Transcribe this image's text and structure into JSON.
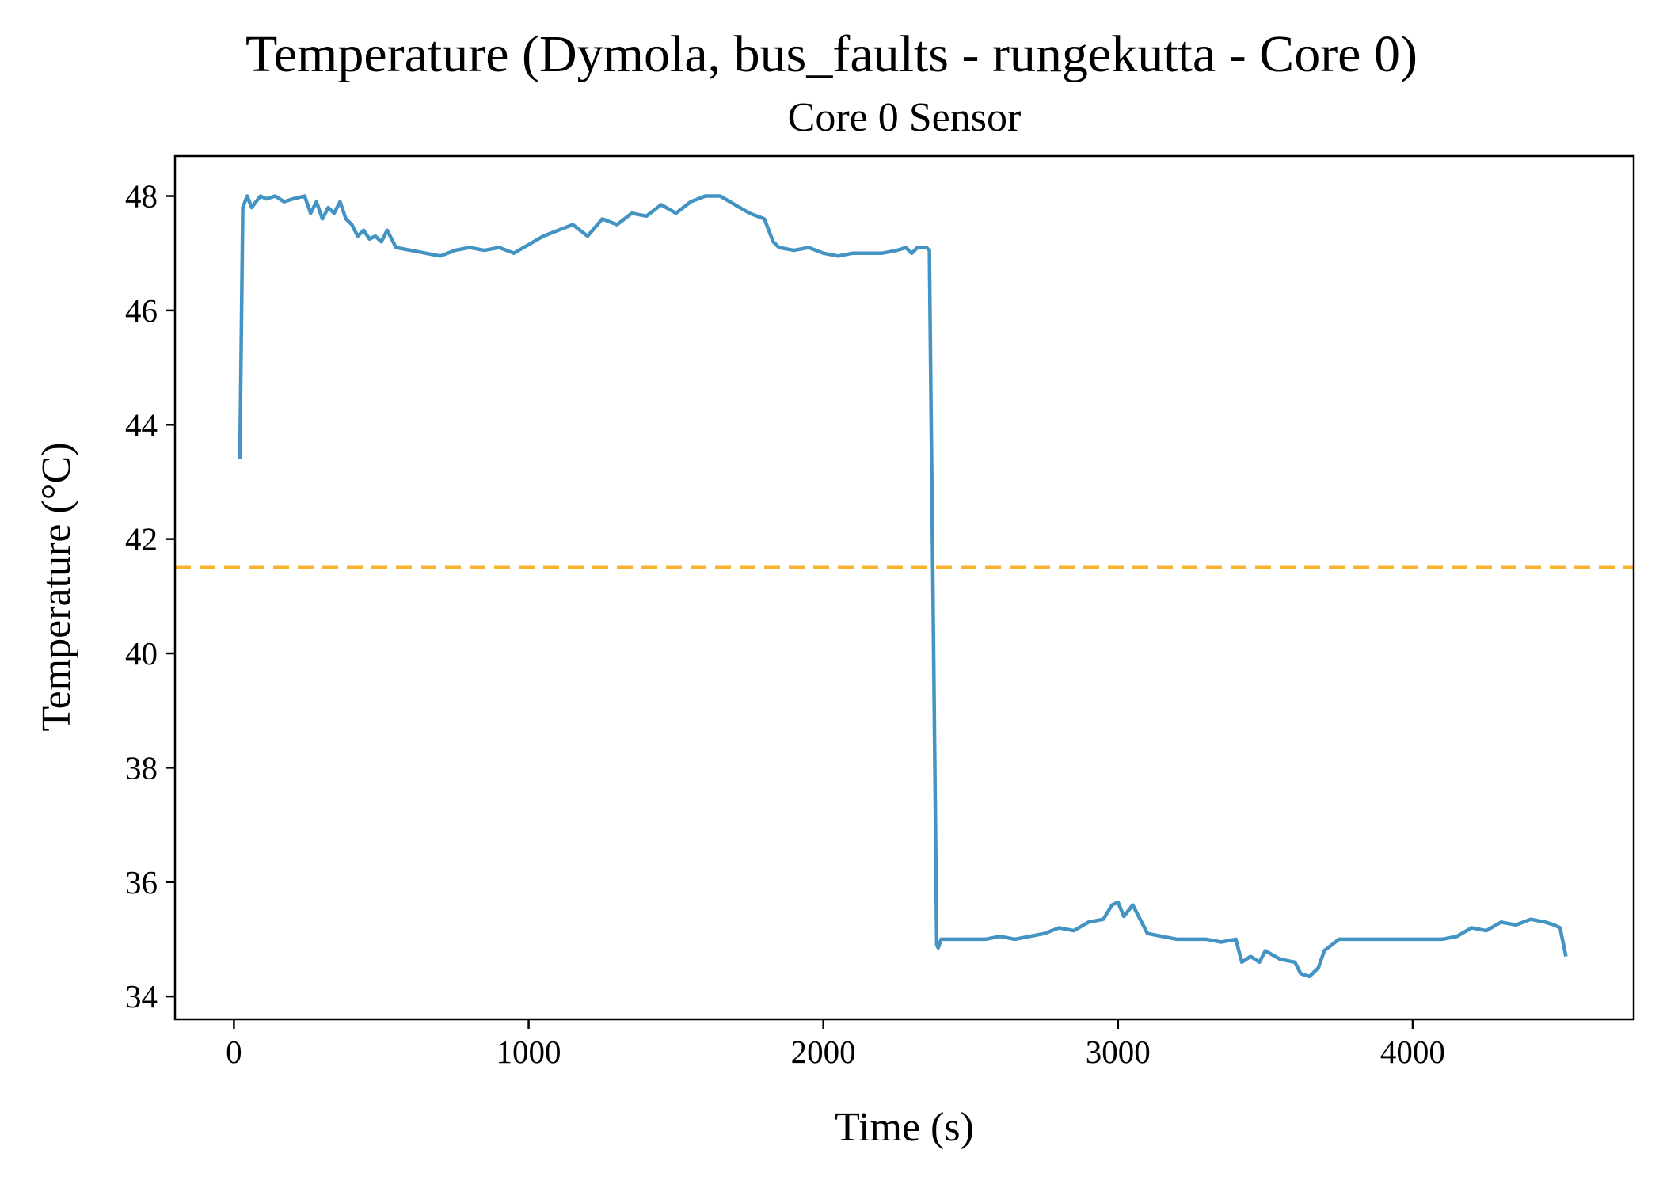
{
  "chart_data": {
    "type": "line",
    "title": "Temperature (Dymola, bus_faults - rungekutta - Core 0)",
    "subtitle": "Core 0 Sensor",
    "xlabel": "Time (s)",
    "ylabel": "Temperature (°C)",
    "xlim": [
      -200,
      4750
    ],
    "ylim": [
      33.6,
      48.7
    ],
    "xticks": [
      0,
      1000,
      2000,
      3000,
      4000
    ],
    "xtick_labels": [
      "0",
      "1000",
      "2000",
      "3000",
      "4000"
    ],
    "yticks": [
      34,
      36,
      38,
      40,
      42,
      44,
      46,
      48
    ],
    "ytick_labels": [
      "34",
      "36",
      "38",
      "40",
      "42",
      "44",
      "46",
      "48"
    ],
    "grid": false,
    "legend": "none",
    "series": [
      {
        "color": "#4393c3",
        "x": [
          20,
          30,
          45,
          60,
          75,
          90,
          110,
          140,
          170,
          200,
          240,
          260,
          280,
          300,
          320,
          340,
          360,
          380,
          400,
          420,
          440,
          460,
          480,
          500,
          520,
          550,
          600,
          650,
          700,
          750,
          800,
          850,
          900,
          950,
          1000,
          1050,
          1100,
          1150,
          1200,
          1250,
          1300,
          1350,
          1400,
          1450,
          1500,
          1550,
          1600,
          1650,
          1700,
          1750,
          1800,
          1830,
          1850,
          1900,
          1950,
          2000,
          2050,
          2100,
          2150,
          2200,
          2250,
          2280,
          2300,
          2320,
          2350,
          2360,
          2385,
          2390,
          2400,
          2450,
          2500,
          2550,
          2600,
          2650,
          2700,
          2750,
          2800,
          2850,
          2900,
          2950,
          2980,
          3000,
          3020,
          3050,
          3080,
          3100,
          3150,
          3200,
          3250,
          3300,
          3350,
          3400,
          3420,
          3450,
          3480,
          3500,
          3550,
          3600,
          3620,
          3650,
          3680,
          3700,
          3750,
          3800,
          3850,
          3900,
          3950,
          4000,
          4050,
          4100,
          4150,
          4200,
          4250,
          4300,
          4350,
          4400,
          4450,
          4480,
          4500,
          4520
        ],
        "y": [
          43.4,
          47.8,
          48.0,
          47.8,
          47.9,
          48.0,
          47.95,
          48.0,
          47.9,
          47.95,
          48.0,
          47.7,
          47.9,
          47.6,
          47.8,
          47.7,
          47.9,
          47.6,
          47.5,
          47.3,
          47.4,
          47.25,
          47.3,
          47.2,
          47.4,
          47.1,
          47.05,
          47.0,
          46.95,
          47.05,
          47.1,
          47.05,
          47.1,
          47.0,
          47.15,
          47.3,
          47.4,
          47.5,
          47.3,
          47.6,
          47.5,
          47.7,
          47.65,
          47.85,
          47.7,
          47.9,
          48.0,
          48.0,
          47.85,
          47.7,
          47.6,
          47.2,
          47.1,
          47.05,
          47.1,
          47.0,
          46.95,
          47.0,
          47.0,
          47.0,
          47.05,
          47.1,
          47.0,
          47.1,
          47.1,
          47.05,
          34.9,
          34.85,
          35.0,
          35.0,
          35.0,
          35.0,
          35.05,
          35.0,
          35.05,
          35.1,
          35.2,
          35.15,
          35.3,
          35.35,
          35.6,
          35.65,
          35.4,
          35.6,
          35.3,
          35.1,
          35.05,
          35.0,
          35.0,
          35.0,
          34.95,
          35.0,
          34.6,
          34.7,
          34.6,
          34.8,
          34.65,
          34.6,
          34.4,
          34.35,
          34.5,
          34.8,
          35.0,
          35.0,
          35.0,
          35.0,
          35.0,
          35.0,
          35.0,
          35.0,
          35.05,
          35.2,
          35.15,
          35.3,
          35.25,
          35.35,
          35.3,
          35.25,
          35.2,
          34.7
        ]
      }
    ],
    "reference_line": {
      "y": 41.5,
      "color": "#fbb32f",
      "style": "dashed"
    }
  }
}
